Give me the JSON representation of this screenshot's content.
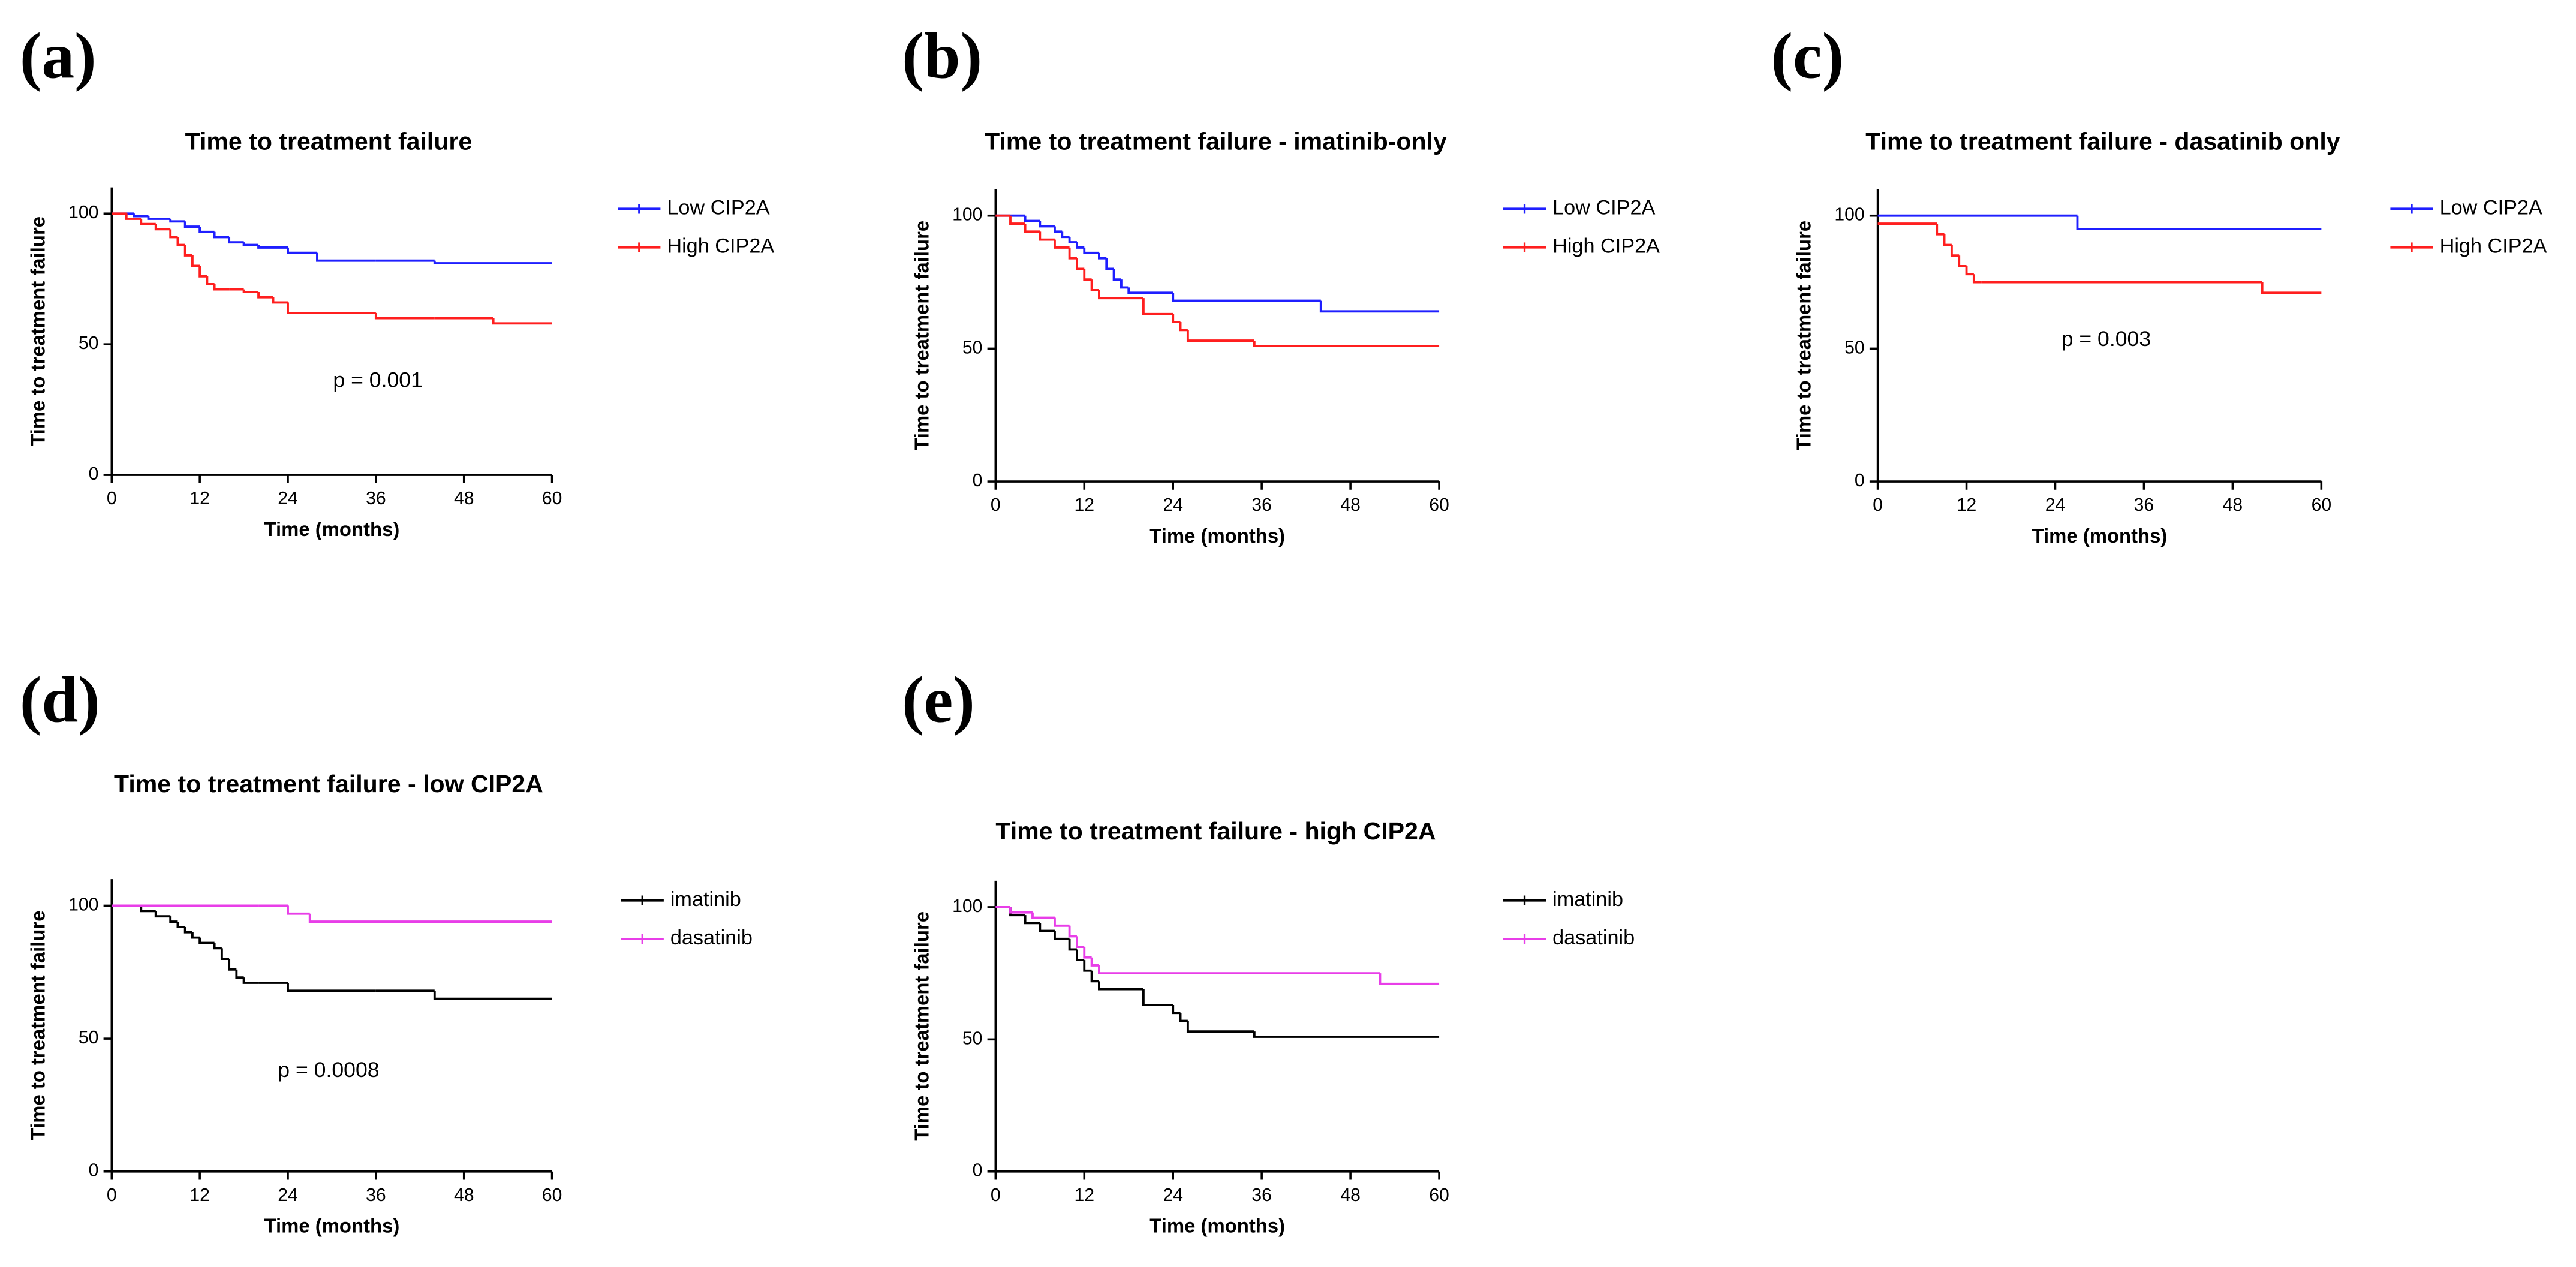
{
  "chart_data": [
    {
      "type": "step",
      "label": "(a)",
      "title": "Time to treatment failure",
      "xlabel": "Time (months)",
      "ylabel": "Time to treatment failure",
      "xlim": [
        0,
        60
      ],
      "xticks": [
        0,
        12,
        24,
        36,
        48,
        60
      ],
      "ylim": [
        0,
        110
      ],
      "yticks": [
        0,
        50,
        100
      ],
      "annotation": "p = 0.001",
      "series": [
        {
          "name": "Low CIP2A",
          "color": "#1f1fff",
          "x": [
            0,
            3,
            5,
            8,
            10,
            12,
            14,
            16,
            18,
            20,
            24,
            28,
            36,
            44,
            60
          ],
          "values": [
            100,
            99,
            98,
            97,
            95,
            93,
            91,
            89,
            88,
            87,
            85,
            82,
            82,
            81,
            81
          ]
        },
        {
          "name": "High CIP2A",
          "color": "#ff1f1f",
          "x": [
            0,
            2,
            4,
            6,
            8,
            9,
            10,
            11,
            12,
            13,
            14,
            16,
            18,
            20,
            22,
            24,
            28,
            36,
            44,
            52,
            60
          ],
          "values": [
            100,
            98,
            96,
            94,
            91,
            88,
            84,
            80,
            76,
            73,
            71,
            71,
            70,
            68,
            66,
            62,
            62,
            60,
            60,
            58,
            58
          ]
        }
      ]
    },
    {
      "type": "step",
      "label": "(b)",
      "title": "Time to treatment failure - imatinib-only",
      "xlabel": "Time (months)",
      "ylabel": "Time to treatment failure",
      "xlim": [
        0,
        60
      ],
      "xticks": [
        0,
        12,
        24,
        36,
        48,
        60
      ],
      "ylim": [
        0,
        110
      ],
      "yticks": [
        0,
        50,
        100
      ],
      "series": [
        {
          "name": "Low CIP2A",
          "color": "#1f1fff",
          "x": [
            0,
            4,
            6,
            8,
            9,
            10,
            11,
            12,
            14,
            15,
            16,
            17,
            18,
            20,
            24,
            36,
            44,
            60
          ],
          "values": [
            100,
            98,
            96,
            94,
            92,
            90,
            88,
            86,
            84,
            80,
            76,
            73,
            71,
            71,
            68,
            68,
            64,
            64
          ]
        },
        {
          "name": "High CIP2A",
          "color": "#ff1f1f",
          "x": [
            0,
            2,
            4,
            6,
            8,
            10,
            11,
            12,
            13,
            14,
            16,
            20,
            24,
            25,
            26,
            35,
            60
          ],
          "values": [
            100,
            97,
            94,
            91,
            88,
            84,
            80,
            76,
            72,
            69,
            69,
            63,
            60,
            57,
            53,
            51,
            51
          ]
        }
      ]
    },
    {
      "type": "step",
      "label": "(c)",
      "title": "Time to treatment failure - dasatinib only",
      "xlabel": "Time (months)",
      "ylabel": "Time to treatment failure",
      "xlim": [
        0,
        60
      ],
      "xticks": [
        0,
        12,
        24,
        36,
        48,
        60
      ],
      "ylim": [
        0,
        110
      ],
      "yticks": [
        0,
        50,
        100
      ],
      "annotation": "p = 0.003",
      "series": [
        {
          "name": "Low CIP2A",
          "color": "#1f1fff",
          "x": [
            0,
            20,
            27,
            60
          ],
          "values": [
            100,
            100,
            95,
            95
          ]
        },
        {
          "name": "High CIP2A",
          "color": "#ff1f1f",
          "x": [
            0,
            6,
            8,
            9,
            10,
            11,
            12,
            13,
            14,
            52,
            60
          ],
          "values": [
            97,
            97,
            93,
            89,
            85,
            81,
            78,
            75,
            75,
            71,
            71
          ]
        }
      ]
    },
    {
      "type": "step",
      "label": "(d)",
      "title": "Time to treatment failure - low CIP2A",
      "xlabel": "Time (months)",
      "ylabel": "Time to treatment failure",
      "xlim": [
        0,
        60
      ],
      "xticks": [
        0,
        12,
        24,
        36,
        48,
        60
      ],
      "ylim": [
        0,
        110
      ],
      "yticks": [
        0,
        50,
        100
      ],
      "annotation": "p = 0.0008",
      "series": [
        {
          "name": "imatinib",
          "color": "#000000",
          "x": [
            0,
            4,
            6,
            8,
            9,
            10,
            11,
            12,
            14,
            15,
            16,
            17,
            18,
            20,
            24,
            36,
            44,
            60
          ],
          "values": [
            100,
            98,
            96,
            94,
            92,
            90,
            88,
            86,
            84,
            80,
            76,
            73,
            71,
            71,
            68,
            68,
            65,
            65
          ]
        },
        {
          "name": "dasatinib",
          "color": "#e83ee8",
          "x": [
            0,
            20,
            24,
            27,
            60
          ],
          "values": [
            100,
            100,
            97,
            94,
            94
          ]
        }
      ]
    },
    {
      "type": "step",
      "label": "(e)",
      "title": "Time to treatment failure - high CIP2A",
      "xlabel": "Time (months)",
      "ylabel": "Time to treatment failure",
      "xlim": [
        0,
        60
      ],
      "xticks": [
        0,
        12,
        24,
        36,
        48,
        60
      ],
      "ylim": [
        0,
        110
      ],
      "yticks": [
        0,
        50,
        100
      ],
      "series": [
        {
          "name": "imatinib",
          "color": "#000000",
          "x": [
            0,
            2,
            4,
            6,
            8,
            10,
            11,
            12,
            13,
            14,
            16,
            20,
            24,
            25,
            26,
            35,
            60
          ],
          "values": [
            100,
            97,
            94,
            91,
            88,
            84,
            80,
            76,
            72,
            69,
            69,
            63,
            60,
            57,
            53,
            51,
            51
          ]
        },
        {
          "name": "dasatinib",
          "color": "#e83ee8",
          "x": [
            0,
            2,
            5,
            8,
            10,
            11,
            12,
            13,
            14,
            52,
            60
          ],
          "values": [
            100,
            98,
            96,
            93,
            89,
            85,
            81,
            78,
            75,
            71,
            71
          ]
        }
      ]
    }
  ]
}
